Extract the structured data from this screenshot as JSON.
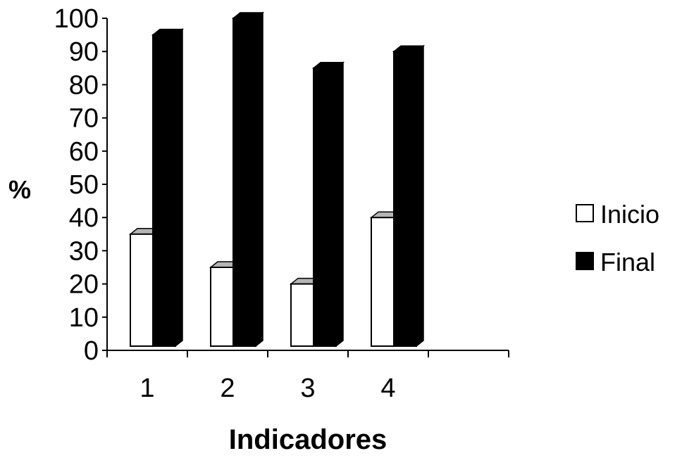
{
  "chart_data": {
    "type": "bar",
    "style": "3d-clustered",
    "categories": [
      "1",
      "2",
      "3",
      "4"
    ],
    "series": [
      {
        "name": "Inicio",
        "values": [
          35,
          25,
          20,
          40
        ],
        "color": "#ffffff"
      },
      {
        "name": "Final",
        "values": [
          95,
          100,
          85,
          90
        ],
        "color": "#000000"
      }
    ],
    "y_ticks": [
      "0",
      "10",
      "20",
      "30",
      "40",
      "50",
      "60",
      "70",
      "80",
      "90",
      "100"
    ],
    "ylim": [
      0,
      100
    ],
    "xlabel": "Indicadores",
    "ylabel": "%",
    "grid": false,
    "legend_position": "right"
  }
}
